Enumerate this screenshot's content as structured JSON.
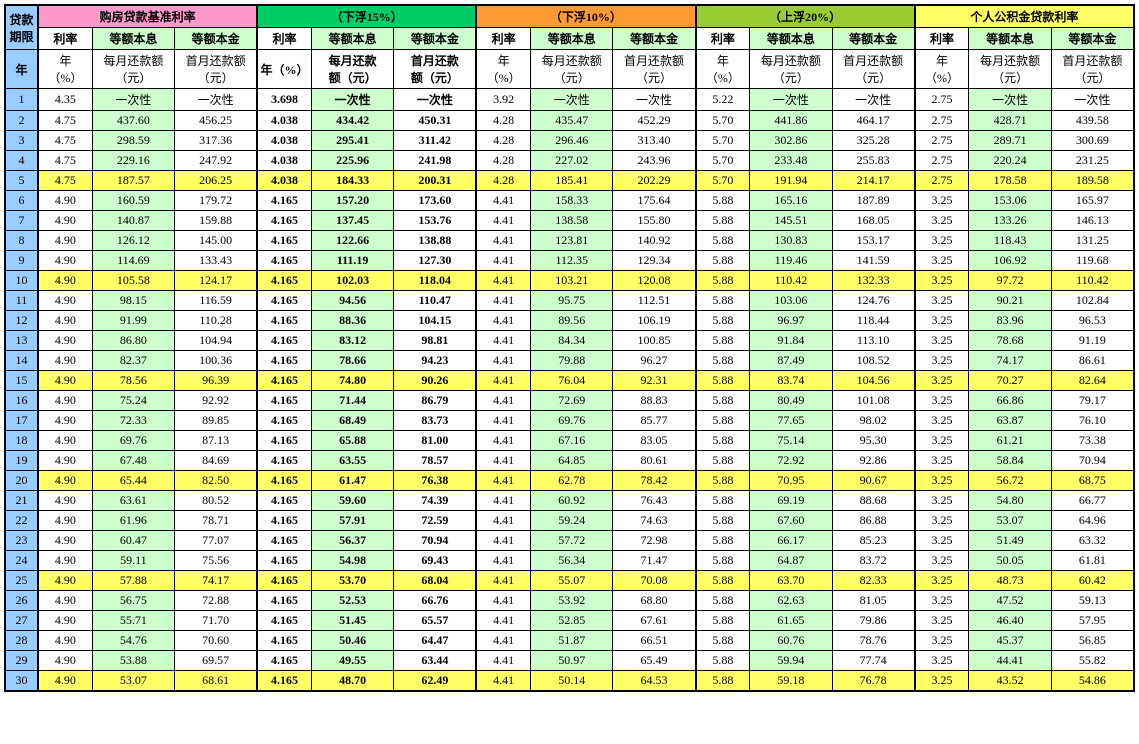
{
  "col_year_label": "贷款\n期限",
  "col_year_unit": "年",
  "sections": [
    {
      "title": "购房贷款基准利率",
      "hdr_class": "hdr-pink",
      "bold": false
    },
    {
      "title": "（下浮15%）",
      "hdr_class": "hdr-green",
      "bold": true
    },
    {
      "title": "（下浮10%）",
      "hdr_class": "hdr-orange",
      "bold": false
    },
    {
      "title": "（上浮20%）",
      "hdr_class": "hdr-olive",
      "bold": false
    },
    {
      "title": "个人公积金贷款利率",
      "hdr_class": "hdr-yellow",
      "bold": false
    }
  ],
  "sub_headers": {
    "rate": "利率",
    "equal_pi": "等额本息",
    "equal_p": "等额本金",
    "rate_unit": "年\n（%）",
    "mpay": "每月还款额\n（元）",
    "fpay": "首月还款额\n（元）",
    "mpay_b": "每月还款\n额（元）",
    "fpay_b": "首月还款\n额（元）",
    "rate_unit_b": "年（%）"
  },
  "once": "一次性",
  "highlight_rows": [
    5,
    10,
    15,
    20,
    25,
    30
  ],
  "rows": [
    {
      "y": 1,
      "r": [
        4.35,
        3.698,
        3.92,
        5.22,
        2.75
      ],
      "m": [
        "一次性",
        "一次性",
        "一次性",
        "一次性",
        "一次性"
      ],
      "f": [
        "一次性",
        "一次性",
        "一次性",
        "一次性",
        "一次性"
      ]
    },
    {
      "y": 2,
      "r": [
        4.75,
        4.038,
        4.28,
        5.7,
        2.75
      ],
      "m": [
        437.6,
        434.42,
        435.47,
        441.86,
        428.71
      ],
      "f": [
        456.25,
        450.31,
        452.29,
        464.17,
        439.58
      ]
    },
    {
      "y": 3,
      "r": [
        4.75,
        4.038,
        4.28,
        5.7,
        2.75
      ],
      "m": [
        298.59,
        295.41,
        296.46,
        302.86,
        289.71
      ],
      "f": [
        317.36,
        311.42,
        313.4,
        325.28,
        300.69
      ]
    },
    {
      "y": 4,
      "r": [
        4.75,
        4.038,
        4.28,
        5.7,
        2.75
      ],
      "m": [
        229.16,
        225.96,
        227.02,
        233.48,
        220.24
      ],
      "f": [
        247.92,
        241.98,
        243.96,
        255.83,
        231.25
      ]
    },
    {
      "y": 5,
      "r": [
        4.75,
        4.038,
        4.28,
        5.7,
        2.75
      ],
      "m": [
        187.57,
        184.33,
        185.41,
        191.94,
        178.58
      ],
      "f": [
        206.25,
        200.31,
        202.29,
        214.17,
        189.58
      ]
    },
    {
      "y": 6,
      "r": [
        4.9,
        4.165,
        4.41,
        5.88,
        3.25
      ],
      "m": [
        160.59,
        157.2,
        158.33,
        165.16,
        153.06
      ],
      "f": [
        179.72,
        173.6,
        175.64,
        187.89,
        165.97
      ]
    },
    {
      "y": 7,
      "r": [
        4.9,
        4.165,
        4.41,
        5.88,
        3.25
      ],
      "m": [
        140.87,
        137.45,
        138.58,
        145.51,
        133.26
      ],
      "f": [
        159.88,
        153.76,
        155.8,
        168.05,
        146.13
      ]
    },
    {
      "y": 8,
      "r": [
        4.9,
        4.165,
        4.41,
        5.88,
        3.25
      ],
      "m": [
        126.12,
        122.66,
        123.81,
        130.83,
        118.43
      ],
      "f": [
        145.0,
        138.88,
        140.92,
        153.17,
        131.25
      ]
    },
    {
      "y": 9,
      "r": [
        4.9,
        4.165,
        4.41,
        5.88,
        3.25
      ],
      "m": [
        114.69,
        111.19,
        112.35,
        119.46,
        106.92
      ],
      "f": [
        133.43,
        127.3,
        129.34,
        141.59,
        119.68
      ]
    },
    {
      "y": 10,
      "r": [
        4.9,
        4.165,
        4.41,
        5.88,
        3.25
      ],
      "m": [
        105.58,
        102.03,
        103.21,
        110.42,
        97.72
      ],
      "f": [
        124.17,
        118.04,
        120.08,
        132.33,
        110.42
      ]
    },
    {
      "y": 11,
      "r": [
        4.9,
        4.165,
        4.41,
        5.88,
        3.25
      ],
      "m": [
        98.15,
        94.56,
        95.75,
        103.06,
        90.21
      ],
      "f": [
        116.59,
        110.47,
        112.51,
        124.76,
        102.84
      ]
    },
    {
      "y": 12,
      "r": [
        4.9,
        4.165,
        4.41,
        5.88,
        3.25
      ],
      "m": [
        91.99,
        88.36,
        89.56,
        96.97,
        83.96
      ],
      "f": [
        110.28,
        104.15,
        106.19,
        118.44,
        96.53
      ]
    },
    {
      "y": 13,
      "r": [
        4.9,
        4.165,
        4.41,
        5.88,
        3.25
      ],
      "m": [
        86.8,
        83.12,
        84.34,
        91.84,
        78.68
      ],
      "f": [
        104.94,
        98.81,
        100.85,
        113.1,
        91.19
      ]
    },
    {
      "y": 14,
      "r": [
        4.9,
        4.165,
        4.41,
        5.88,
        3.25
      ],
      "m": [
        82.37,
        78.66,
        79.88,
        87.49,
        74.17
      ],
      "f": [
        100.36,
        94.23,
        96.27,
        108.52,
        86.61
      ]
    },
    {
      "y": 15,
      "r": [
        4.9,
        4.165,
        4.41,
        5.88,
        3.25
      ],
      "m": [
        78.56,
        74.8,
        76.04,
        83.74,
        70.27
      ],
      "f": [
        96.39,
        90.26,
        92.31,
        104.56,
        82.64
      ]
    },
    {
      "y": 16,
      "r": [
        4.9,
        4.165,
        4.41,
        5.88,
        3.25
      ],
      "m": [
        75.24,
        71.44,
        72.69,
        80.49,
        66.86
      ],
      "f": [
        92.92,
        86.79,
        88.83,
        101.08,
        79.17
      ]
    },
    {
      "y": 17,
      "r": [
        4.9,
        4.165,
        4.41,
        5.88,
        3.25
      ],
      "m": [
        72.33,
        68.49,
        69.76,
        77.65,
        63.87
      ],
      "f": [
        89.85,
        83.73,
        85.77,
        98.02,
        76.1
      ]
    },
    {
      "y": 18,
      "r": [
        4.9,
        4.165,
        4.41,
        5.88,
        3.25
      ],
      "m": [
        69.76,
        65.88,
        67.16,
        75.14,
        61.21
      ],
      "f": [
        87.13,
        81.0,
        83.05,
        95.3,
        73.38
      ]
    },
    {
      "y": 19,
      "r": [
        4.9,
        4.165,
        4.41,
        5.88,
        3.25
      ],
      "m": [
        67.48,
        63.55,
        64.85,
        72.92,
        58.84
      ],
      "f": [
        84.69,
        78.57,
        80.61,
        92.86,
        70.94
      ]
    },
    {
      "y": 20,
      "r": [
        4.9,
        4.165,
        4.41,
        5.88,
        3.25
      ],
      "m": [
        65.44,
        61.47,
        62.78,
        70.95,
        56.72
      ],
      "f": [
        82.5,
        76.38,
        78.42,
        90.67,
        68.75
      ]
    },
    {
      "y": 21,
      "r": [
        4.9,
        4.165,
        4.41,
        5.88,
        3.25
      ],
      "m": [
        63.61,
        59.6,
        60.92,
        69.19,
        54.8
      ],
      "f": [
        80.52,
        74.39,
        76.43,
        88.68,
        66.77
      ]
    },
    {
      "y": 22,
      "r": [
        4.9,
        4.165,
        4.41,
        5.88,
        3.25
      ],
      "m": [
        61.96,
        57.91,
        59.24,
        67.6,
        53.07
      ],
      "f": [
        78.71,
        72.59,
        74.63,
        86.88,
        64.96
      ]
    },
    {
      "y": 23,
      "r": [
        4.9,
        4.165,
        4.41,
        5.88,
        3.25
      ],
      "m": [
        60.47,
        56.37,
        57.72,
        66.17,
        51.49
      ],
      "f": [
        77.07,
        70.94,
        72.98,
        85.23,
        63.32
      ]
    },
    {
      "y": 24,
      "r": [
        4.9,
        4.165,
        4.41,
        5.88,
        3.25
      ],
      "m": [
        59.11,
        54.98,
        56.34,
        64.87,
        50.05
      ],
      "f": [
        75.56,
        69.43,
        71.47,
        83.72,
        61.81
      ]
    },
    {
      "y": 25,
      "r": [
        4.9,
        4.165,
        4.41,
        5.88,
        3.25
      ],
      "m": [
        57.88,
        53.7,
        55.07,
        63.7,
        48.73
      ],
      "f": [
        74.17,
        68.04,
        70.08,
        82.33,
        60.42
      ]
    },
    {
      "y": 26,
      "r": [
        4.9,
        4.165,
        4.41,
        5.88,
        3.25
      ],
      "m": [
        56.75,
        52.53,
        53.92,
        62.63,
        47.52
      ],
      "f": [
        72.88,
        66.76,
        68.8,
        81.05,
        59.13
      ]
    },
    {
      "y": 27,
      "r": [
        4.9,
        4.165,
        4.41,
        5.88,
        3.25
      ],
      "m": [
        55.71,
        51.45,
        52.85,
        61.65,
        46.4
      ],
      "f": [
        71.7,
        65.57,
        67.61,
        79.86,
        57.95
      ]
    },
    {
      "y": 28,
      "r": [
        4.9,
        4.165,
        4.41,
        5.88,
        3.25
      ],
      "m": [
        54.76,
        50.46,
        51.87,
        60.76,
        45.37
      ],
      "f": [
        70.6,
        64.47,
        66.51,
        78.76,
        56.85
      ]
    },
    {
      "y": 29,
      "r": [
        4.9,
        4.165,
        4.41,
        5.88,
        3.25
      ],
      "m": [
        53.88,
        49.55,
        50.97,
        59.94,
        44.41
      ],
      "f": [
        69.57,
        63.44,
        65.49,
        77.74,
        55.82
      ]
    },
    {
      "y": 30,
      "r": [
        4.9,
        4.165,
        4.41,
        5.88,
        3.25
      ],
      "m": [
        53.07,
        48.7,
        50.14,
        59.18,
        43.52
      ],
      "f": [
        68.61,
        62.49,
        64.53,
        76.78,
        54.86
      ]
    }
  ]
}
